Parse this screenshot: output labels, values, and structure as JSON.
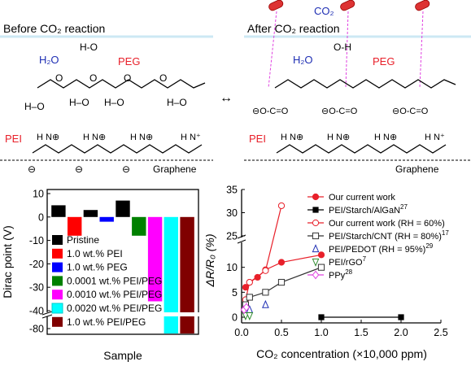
{
  "scheme": {
    "before_title": "Before CO₂ reaction",
    "after_title": "After CO₂ reaction",
    "h2o": "H₂O",
    "peg": "PEG",
    "pei": "PEI",
    "graphene": "Graphene",
    "co2": "CO₂",
    "arrow": "↔",
    "colors": {
      "peg": "#e8202a",
      "h2o": "#1f2fb4",
      "pei": "#e8202a",
      "arrow_dash": "#e040e0",
      "surface_line": "#cde8f4"
    }
  },
  "chart_data": [
    {
      "type": "bar",
      "ylabel": "Dirac point (V)",
      "xlabel": "Sample",
      "yticks_upper": [
        "10",
        "0",
        "-10",
        "-20",
        "-30",
        "-40"
      ],
      "ytick_lower": "-80",
      "axis_break": true,
      "series": [
        {
          "name": "Pristine",
          "color": "#000000",
          "values": [
            5.0,
            4.5
          ]
        },
        {
          "name": "1.0 wt.% PEI",
          "color": "#ff0000",
          "values": [
            -8.0
          ]
        },
        {
          "name": "1.0 wt.% PEG",
          "color": "#0000ff",
          "values": [
            3.0,
            -2.0
          ]
        },
        {
          "name": "0.0001 wt.% PEI/PEG",
          "color": "#008000",
          "values": [
            7.0,
            -8.0
          ]
        },
        {
          "name": "0.0010 wt.% PEI/PEG",
          "color": "#ff00ff",
          "values": [
            -36.0
          ]
        },
        {
          "name": "0.0020 wt.% PEI/PEG",
          "color": "#00ffff",
          "values": [
            -80.0
          ]
        },
        {
          "name": "1.0 wt.% PEI/PEG",
          "color": "#800000",
          "values": [
            -80.0
          ]
        }
      ],
      "bars": [
        {
          "color": "#000000",
          "value": 5.0
        },
        {
          "color": "#ff0000",
          "value": -8.0
        },
        {
          "color": "#000000",
          "value": 3.0
        },
        {
          "color": "#0000ff",
          "value": -2.0
        },
        {
          "color": "#000000",
          "value": 7.0
        },
        {
          "color": "#008000",
          "value": -8.0
        },
        {
          "color": "#ff00ff",
          "value": -36.0
        },
        {
          "color": "#00ffff",
          "value": -80.0
        },
        {
          "color": "#800000",
          "value": -80.0
        }
      ]
    },
    {
      "type": "scatter",
      "xlabel": "CO₂ concentration (×10,000 ppm)",
      "ylabel": "ΔR/R₀ (%)",
      "xlim": [
        0,
        2.5
      ],
      "ylim_lower": [
        0,
        15
      ],
      "ylim_upper": [
        25,
        35
      ],
      "axis_break": true,
      "xticks": [
        "0.0",
        "0.5",
        "1.0",
        "1.5",
        "2.0",
        "2.5"
      ],
      "yticks_lower": [
        "0",
        "5",
        "10"
      ],
      "yticks_upper": [
        "25",
        "30",
        "35"
      ],
      "series": [
        {
          "name": "Our current work",
          "color": "#e8202a",
          "marker": "circle-filled",
          "line": true,
          "x": [
            0.05,
            0.1,
            0.2,
            0.3,
            0.5,
            1.0
          ],
          "y": [
            6.0,
            7.0,
            8.0,
            9.5,
            11.0,
            12.5
          ]
        },
        {
          "name": "PEI/Starch/AlGaN",
          "sup": "27",
          "color": "#000000",
          "marker": "square-filled",
          "line": true,
          "x": [
            1.0,
            2.0
          ],
          "y": [
            0.0,
            0.0
          ]
        },
        {
          "name": "Our current work (RH = 60%)",
          "color": "#e8202a",
          "marker": "circle-open",
          "line": true,
          "x": [
            0.05,
            0.1,
            0.3,
            0.5
          ],
          "y": [
            3.5,
            7.0,
            17.5,
            31.5
          ]
        },
        {
          "name": "PEI/Starch/CNT  (RH = 80%)",
          "sup": "17",
          "color": "#333333",
          "marker": "square-open",
          "line": true,
          "x": [
            0.05,
            0.1,
            0.3,
            0.5,
            1.0
          ],
          "y": [
            2.5,
            4.0,
            5.0,
            7.0,
            10.0
          ]
        },
        {
          "name": "PEI/PEDOT  (RH = 95%)",
          "sup": "29",
          "color": "#1f2fb4",
          "marker": "triangle-up-open",
          "line": false,
          "x": [
            0.1,
            0.3
          ],
          "y": [
            1.5,
            2.5
          ]
        },
        {
          "name": "PEI/rGO",
          "sup": "7",
          "color": "#2e8b2e",
          "marker": "triangle-down-open",
          "line": false,
          "x": [
            0.05,
            0.1
          ],
          "y": [
            0.3,
            0.3
          ]
        },
        {
          "name": "PPy",
          "sup": "28",
          "color": "#e040e0",
          "marker": "diamond-open",
          "line": true,
          "x": [
            0.03,
            0.06
          ],
          "y": [
            1.5,
            2.0
          ]
        }
      ]
    }
  ]
}
